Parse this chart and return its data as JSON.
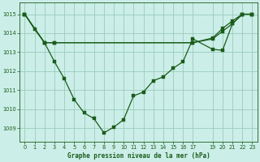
{
  "bg_color": "#cceee8",
  "grid_color": "#99ccbb",
  "line_color": "#1a5c1a",
  "title": "Graphe pression niveau de la mer (hPa)",
  "ylim": [
    1008.3,
    1015.6
  ],
  "yticks": [
    1009,
    1010,
    1011,
    1012,
    1013,
    1014,
    1015
  ],
  "xticks": [
    0,
    1,
    2,
    3,
    4,
    5,
    6,
    7,
    8,
    9,
    10,
    11,
    12,
    13,
    14,
    15,
    16,
    17,
    19,
    20,
    21,
    22,
    23
  ],
  "xlim": [
    -0.5,
    23.5
  ],
  "series1_x": [
    0,
    1,
    2,
    3,
    4,
    5,
    6,
    7,
    8,
    9,
    10,
    11,
    12,
    13,
    14,
    15,
    16,
    17,
    19,
    20,
    21,
    22,
    23
  ],
  "series1_y": [
    1015.0,
    1014.2,
    1013.5,
    1012.5,
    1011.6,
    1010.5,
    1009.8,
    1009.5,
    1008.75,
    1009.05,
    1009.45,
    1010.7,
    1010.9,
    1011.5,
    1011.7,
    1012.15,
    1012.5,
    1013.7,
    1013.15,
    1013.1,
    1014.5,
    1015.0,
    1015.0
  ],
  "series2_x": [
    0,
    2,
    3,
    17,
    19,
    20,
    21,
    22,
    23
  ],
  "series2_y": [
    1015.0,
    1013.5,
    1013.5,
    1013.5,
    1013.7,
    1014.1,
    1014.5,
    1015.0,
    1015.0
  ],
  "series3_x": [
    0,
    2,
    3,
    17,
    19,
    20,
    21,
    22,
    23
  ],
  "series3_y": [
    1015.0,
    1013.5,
    1013.5,
    1013.5,
    1013.75,
    1014.25,
    1014.65,
    1015.0,
    1015.0
  ],
  "ylabel_fontsize": 5,
  "xlabel_fontsize": 5.5,
  "tick_fontsize": 4.8,
  "linewidth": 0.9,
  "markersize": 2.2
}
